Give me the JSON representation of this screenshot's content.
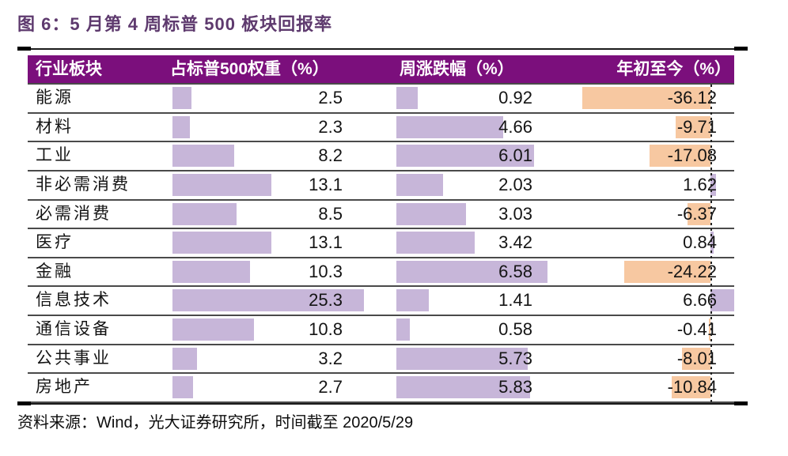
{
  "title": "图 6：5 月第 4 周标普 500 板块回报率",
  "source_note": "资料来源：Wind，光大证券研究所，时间截至 2020/5/29",
  "table": {
    "headers": [
      "行业板块",
      "占标普500权重（%）",
      "周涨跌幅（%）",
      "年初至今（%）"
    ],
    "rows": [
      {
        "sector": "能源",
        "weight": 2.5,
        "weight_text": "2.5",
        "weekly": 0.92,
        "weekly_text": "0.92",
        "ytd": -36.12,
        "ytd_text": "-36.12"
      },
      {
        "sector": "材料",
        "weight": 2.3,
        "weight_text": "2.3",
        "weekly": 4.66,
        "weekly_text": "4.66",
        "ytd": -9.71,
        "ytd_text": "-9.71"
      },
      {
        "sector": "工业",
        "weight": 8.2,
        "weight_text": "8.2",
        "weekly": 6.01,
        "weekly_text": "6.01",
        "ytd": -17.08,
        "ytd_text": "-17.08"
      },
      {
        "sector": "非必需消费",
        "weight": 13.1,
        "weight_text": "13.1",
        "weekly": 2.03,
        "weekly_text": "2.03",
        "ytd": 1.62,
        "ytd_text": "1.62"
      },
      {
        "sector": "必需消费",
        "weight": 8.5,
        "weight_text": "8.5",
        "weekly": 3.03,
        "weekly_text": "3.03",
        "ytd": -6.37,
        "ytd_text": "-6.37"
      },
      {
        "sector": "医疗",
        "weight": 13.1,
        "weight_text": "13.1",
        "weekly": 3.42,
        "weekly_text": "3.42",
        "ytd": 0.84,
        "ytd_text": "0.84"
      },
      {
        "sector": "金融",
        "weight": 10.3,
        "weight_text": "10.3",
        "weekly": 6.58,
        "weekly_text": "6.58",
        "ytd": -24.22,
        "ytd_text": "-24.22"
      },
      {
        "sector": "信息技术",
        "weight": 25.3,
        "weight_text": "25.3",
        "weekly": 1.41,
        "weekly_text": "1.41",
        "ytd": 6.66,
        "ytd_text": "6.66"
      },
      {
        "sector": "通信设备",
        "weight": 10.8,
        "weight_text": "10.8",
        "weekly": 0.58,
        "weekly_text": "0.58",
        "ytd": -0.41,
        "ytd_text": "-0.41"
      },
      {
        "sector": "公共事业",
        "weight": 3.2,
        "weight_text": "3.2",
        "weekly": 5.73,
        "weekly_text": "5.73",
        "ytd": -8.01,
        "ytd_text": "-8.01"
      },
      {
        "sector": "房地产",
        "weight": 2.7,
        "weight_text": "2.7",
        "weekly": 5.83,
        "weekly_text": "5.83",
        "ytd": -10.84,
        "ytd_text": "-10.84"
      }
    ]
  },
  "colors": {
    "header_bg": "#7b0f7c",
    "header_text": "#ffffff",
    "positive_bar": "#c7b6d9",
    "negative_bar": "#f7c8a1",
    "title_text": "#5e3a6e",
    "grid_line": "#4a4a4a"
  },
  "chart_data": {
    "type": "table",
    "title": "图 6：5 月第 4 周标普 500 板块回报率",
    "categories": [
      "能源",
      "材料",
      "工业",
      "非必需消费",
      "必需消费",
      "医疗",
      "金融",
      "信息技术",
      "通信设备",
      "公共事业",
      "房地产"
    ],
    "series": [
      {
        "name": "占标普500权重（%）",
        "values": [
          2.5,
          2.3,
          8.2,
          13.1,
          8.5,
          13.1,
          10.3,
          25.3,
          10.8,
          3.2,
          2.7
        ]
      },
      {
        "name": "周涨跌幅（%）",
        "values": [
          0.92,
          4.66,
          6.01,
          2.03,
          3.03,
          3.42,
          6.58,
          1.41,
          0.58,
          5.73,
          5.83
        ]
      },
      {
        "name": "年初至今（%）",
        "values": [
          -36.12,
          -9.71,
          -17.08,
          1.62,
          -6.37,
          0.84,
          -24.22,
          6.66,
          -0.41,
          -8.01,
          -10.84
        ]
      }
    ],
    "notes": "数据条：权重与周涨跌幅为紫色正值条；年初至今以虚线为零轴，负值橙色向左，正值紫色向右",
    "source": "资料来源：Wind，光大证券研究所，时间截至 2020/5/29"
  }
}
